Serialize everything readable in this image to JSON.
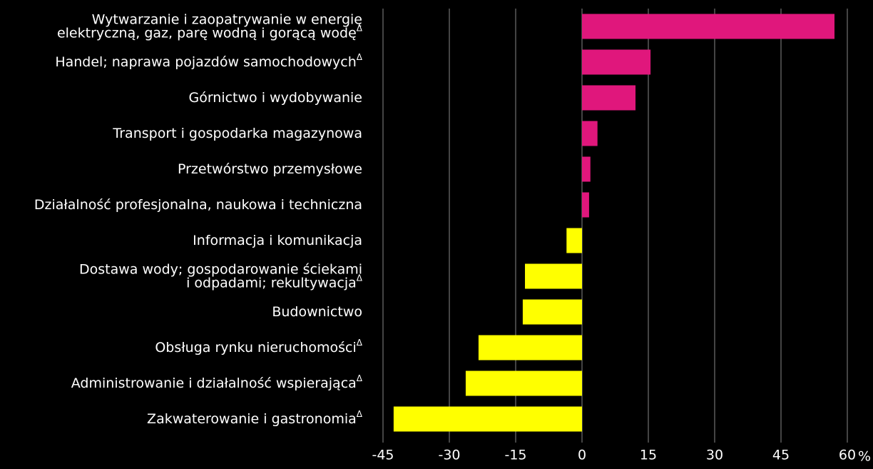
{
  "chart_data": {
    "type": "hbar",
    "categories": [
      [
        "Wytwarzanie i zaopatrywanie w energię",
        "elektryczną, gaz, parę wodną i gorącą wodę"
      ],
      [
        "Handel; naprawa pojazdów samochodowych"
      ],
      [
        "Górnictwo i wydobywanie"
      ],
      [
        "Transport i gospodarka magazynowa"
      ],
      [
        "Przetwórstwo przemysłowe"
      ],
      [
        "Działalność profesjonalna, naukowa i techniczna"
      ],
      [
        "Informacja i komunikacja"
      ],
      [
        "Dostawa wody; gospodarowanie ściekami",
        "i odpadami; rekultywacja"
      ],
      [
        "Budownictwo"
      ],
      [
        "Obsługa rynku nieruchomości"
      ],
      [
        "Administrowanie i działalność wspierająca"
      ],
      [
        "Zakwaterowanie i gastronomia"
      ]
    ],
    "category_marks": [
      "Δ",
      "Δ",
      null,
      null,
      null,
      null,
      null,
      "Δ",
      null,
      "Δ",
      "Δ",
      "Δ"
    ],
    "values": [
      57.1,
      15.5,
      12.1,
      3.5,
      1.9,
      1.6,
      -3.5,
      -12.9,
      -13.4,
      -23.4,
      -26.3,
      -42.6
    ],
    "positive_color": "#e0177c",
    "negative_color": "#ffff00",
    "xlim": [
      -45,
      60
    ],
    "xticks": [
      -45,
      -30,
      -15,
      0,
      15,
      30,
      45,
      60
    ],
    "x_unit": "%",
    "grid": true
  }
}
